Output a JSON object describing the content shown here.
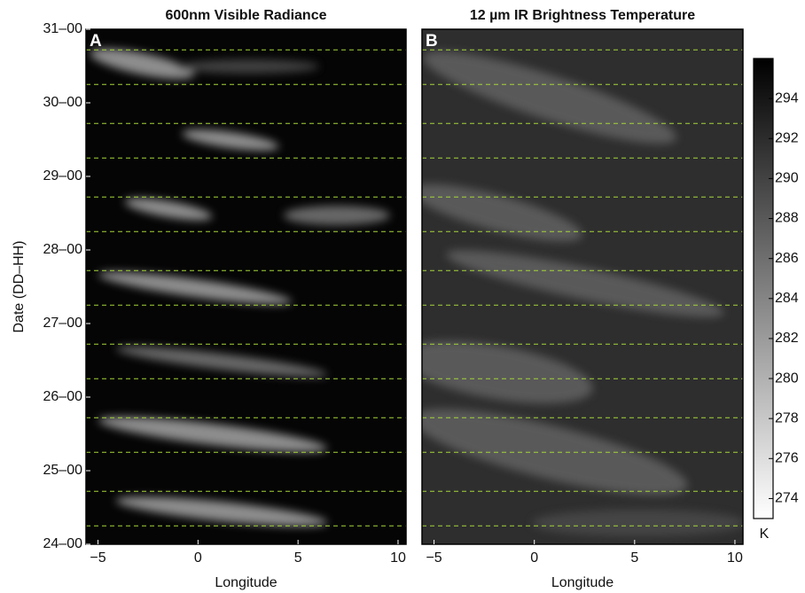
{
  "chart_data": [
    {
      "type": "heatmap",
      "title": "600nm Visible Radiance",
      "panel_label": "A",
      "xlabel": "Longitude",
      "ylabel": "Date (DD–HH)",
      "xlim": [
        -5.6,
        10.4
      ],
      "xticks": [
        {
          "value": -5,
          "label": "−5"
        },
        0,
        5,
        10
      ],
      "ylim": [
        24,
        31
      ],
      "yticks": [
        {
          "value": 24,
          "label": "24–00"
        },
        {
          "value": 25,
          "label": "25–00"
        },
        {
          "value": 26,
          "label": "26–00"
        },
        {
          "value": 27,
          "label": "27–00"
        },
        {
          "value": 28,
          "label": "28–00"
        },
        {
          "value": 29,
          "label": "29–00"
        },
        {
          "value": 30,
          "label": "30–00"
        },
        {
          "value": 31,
          "label": "31–00"
        }
      ],
      "reference_lines": [
        24.25,
        24.72,
        25.25,
        25.72,
        26.25,
        26.72,
        27.25,
        27.72,
        28.25,
        28.72,
        29.25,
        29.72,
        30.25,
        30.72
      ],
      "reference_color": "#a6d63a"
    },
    {
      "type": "heatmap",
      "title": "12 µm IR Brightness Temperature",
      "panel_label": "B",
      "xlabel": "Longitude",
      "xlim": [
        -5.6,
        10.4
      ],
      "xticks": [
        {
          "value": -5,
          "label": "−5"
        },
        0,
        5,
        10
      ],
      "ylim": [
        24,
        31
      ],
      "reference_lines": [
        24.25,
        24.72,
        25.25,
        25.72,
        26.25,
        26.72,
        27.25,
        27.72,
        28.25,
        28.72,
        29.25,
        29.72,
        30.25,
        30.72
      ],
      "reference_color": "#a6d63a",
      "colorbar": {
        "label": "K",
        "lim": [
          273,
          296
        ],
        "ticks": [
          274,
          276,
          278,
          280,
          282,
          284,
          286,
          288,
          290,
          292,
          294
        ]
      }
    }
  ]
}
